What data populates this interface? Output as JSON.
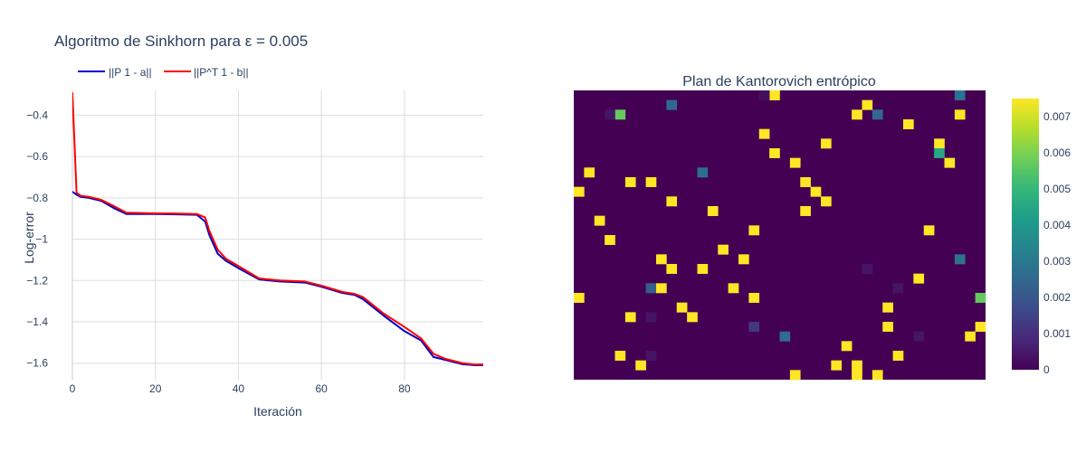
{
  "figure_title": "Algoritmo de Sinkhorn para ε = 0.005",
  "chart_data": [
    {
      "type": "line",
      "xlabel": "Iteración",
      "ylabel": "Log-error",
      "xlim": [
        0,
        99
      ],
      "ylim": [
        -1.68,
        -0.28
      ],
      "x_ticks": [
        0,
        20,
        40,
        60,
        80
      ],
      "y_ticks": [
        -0.4,
        -0.6,
        -0.8,
        -1,
        -1.2,
        -1.4,
        -1.6
      ],
      "y_tick_labels": [
        "−0.4",
        "−0.6",
        "−0.8",
        "−1",
        "−1.2",
        "−1.4",
        "−1.6"
      ],
      "grid": true,
      "legend_position": "top-left, horizontal",
      "x_anchor_iterations": [
        0,
        1,
        2,
        4,
        7,
        10,
        13,
        20,
        25,
        30,
        32,
        33,
        35,
        37,
        40,
        45,
        50,
        56,
        60,
        65,
        68,
        70,
        75,
        80,
        84,
        87,
        90,
        94,
        97,
        99
      ],
      "series": [
        {
          "name": "||P 1 - a||",
          "color": "#0000cd",
          "values": [
            -0.77,
            -0.785,
            -0.795,
            -0.8,
            -0.815,
            -0.85,
            -0.878,
            -0.878,
            -0.88,
            -0.882,
            -0.915,
            -0.98,
            -1.07,
            -1.105,
            -1.14,
            -1.195,
            -1.205,
            -1.21,
            -1.23,
            -1.26,
            -1.27,
            -1.29,
            -1.37,
            -1.445,
            -1.49,
            -1.57,
            -1.585,
            -1.605,
            -1.61,
            -1.61
          ]
        },
        {
          "name": "||P^T 1 - b||",
          "color": "#ff0000",
          "values": [
            -0.29,
            -0.775,
            -0.79,
            -0.795,
            -0.81,
            -0.84,
            -0.872,
            -0.875,
            -0.876,
            -0.878,
            -0.895,
            -0.96,
            -1.05,
            -1.095,
            -1.13,
            -1.19,
            -1.2,
            -1.205,
            -1.225,
            -1.255,
            -1.265,
            -1.28,
            -1.36,
            -1.425,
            -1.48,
            -1.555,
            -1.58,
            -1.6,
            -1.607,
            -1.607
          ]
        }
      ]
    },
    {
      "type": "heatmap",
      "title": "Plan de Kantorovich entrópico",
      "n_rows": 30,
      "n_cols": 40,
      "colorscale": "Viridis",
      "zmin": 0,
      "zmax": 0.0075,
      "colorbar_ticks": [
        0,
        0.001,
        0.002,
        0.003,
        0.004,
        0.005,
        0.006,
        0.007
      ],
      "colorbar_tick_labels": [
        "0",
        "0.001",
        "0.002",
        "0.003",
        "0.004",
        "0.005",
        "0.006",
        "0.007"
      ],
      "cells": [
        [
          0,
          19,
          0.0075
        ],
        [
          0,
          37,
          0.0028
        ],
        [
          0,
          18,
          0.0003
        ],
        [
          1,
          9,
          0.0025
        ],
        [
          1,
          28,
          0.0075
        ],
        [
          2,
          4,
          0.0057
        ],
        [
          2,
          27,
          0.0075
        ],
        [
          2,
          29,
          0.0025
        ],
        [
          2,
          37,
          0.0075
        ],
        [
          2,
          3,
          0.0004
        ],
        [
          3,
          32,
          0.0075
        ],
        [
          4,
          18,
          0.0075
        ],
        [
          5,
          24,
          0.0075
        ],
        [
          5,
          35,
          0.0075
        ],
        [
          6,
          19,
          0.0075
        ],
        [
          6,
          35,
          0.0045
        ],
        [
          7,
          21,
          0.0075
        ],
        [
          7,
          36,
          0.0075
        ],
        [
          8,
          1,
          0.0075
        ],
        [
          8,
          12,
          0.0027
        ],
        [
          9,
          5,
          0.0075
        ],
        [
          9,
          7,
          0.0075
        ],
        [
          9,
          22,
          0.0075
        ],
        [
          10,
          0,
          0.0075
        ],
        [
          10,
          23,
          0.0075
        ],
        [
          11,
          9,
          0.0075
        ],
        [
          11,
          24,
          0.0075
        ],
        [
          12,
          13,
          0.0075
        ],
        [
          12,
          22,
          0.0075
        ],
        [
          13,
          2,
          0.0075
        ],
        [
          14,
          17,
          0.0075
        ],
        [
          14,
          34,
          0.0075
        ],
        [
          15,
          3,
          0.0075
        ],
        [
          16,
          14,
          0.0075
        ],
        [
          17,
          8,
          0.0075
        ],
        [
          17,
          16,
          0.0075
        ],
        [
          17,
          37,
          0.0028
        ],
        [
          18,
          9,
          0.0075
        ],
        [
          18,
          12,
          0.0075
        ],
        [
          18,
          28,
          0.0004
        ],
        [
          19,
          33,
          0.0075
        ],
        [
          20,
          7,
          0.0022
        ],
        [
          20,
          8,
          0.0075
        ],
        [
          20,
          15,
          0.0075
        ],
        [
          20,
          31,
          0.0004
        ],
        [
          21,
          0,
          0.0075
        ],
        [
          21,
          17,
          0.0075
        ],
        [
          21,
          39,
          0.0057
        ],
        [
          22,
          10,
          0.0075
        ],
        [
          22,
          30,
          0.0075
        ],
        [
          23,
          5,
          0.0075
        ],
        [
          23,
          11,
          0.0075
        ],
        [
          23,
          7,
          0.0004
        ],
        [
          24,
          17,
          0.0012
        ],
        [
          24,
          30,
          0.0075
        ],
        [
          24,
          39,
          0.0075
        ],
        [
          25,
          20,
          0.0026
        ],
        [
          25,
          33,
          0.0004
        ],
        [
          25,
          38,
          0.0075
        ],
        [
          26,
          26,
          0.0075
        ],
        [
          27,
          4,
          0.0075
        ],
        [
          27,
          31,
          0.0075
        ],
        [
          27,
          7,
          0.0004
        ],
        [
          28,
          6,
          0.0075
        ],
        [
          28,
          25,
          0.0075
        ],
        [
          28,
          27,
          0.0075
        ],
        [
          29,
          21,
          0.0075
        ],
        [
          29,
          27,
          0.0075
        ],
        [
          29,
          29,
          0.0075
        ]
      ]
    }
  ]
}
